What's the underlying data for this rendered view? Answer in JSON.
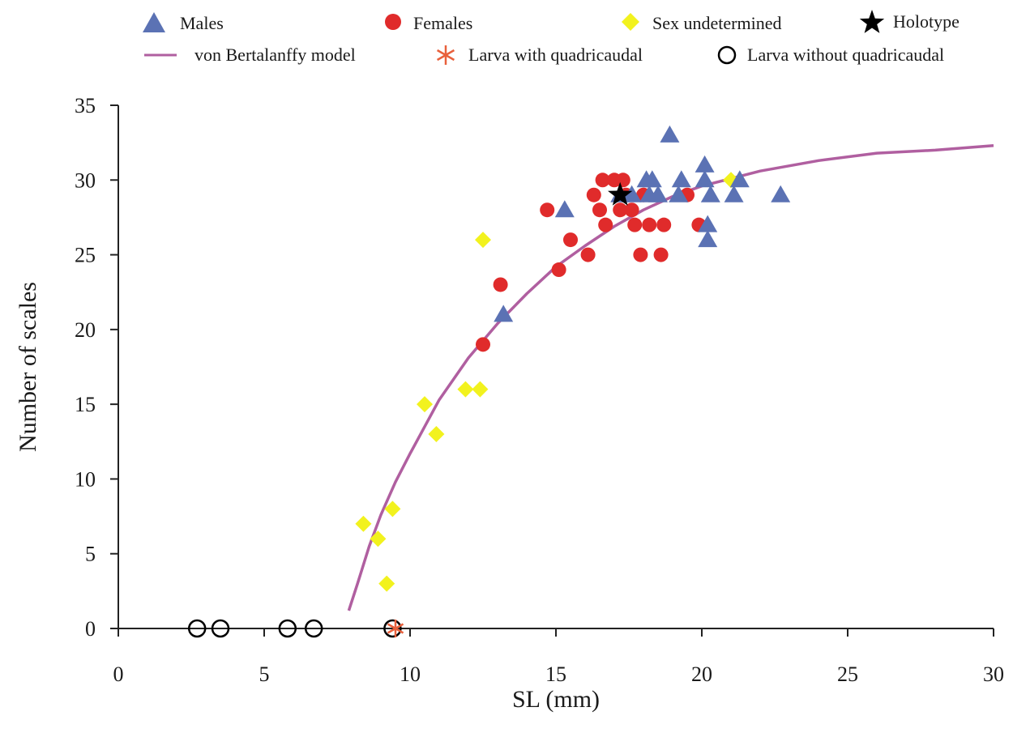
{
  "chart_data": {
    "type": "scatter",
    "xlabel": "SL (mm)",
    "ylabel": "Number of scales",
    "xlim": [
      0,
      30
    ],
    "ylim": [
      0,
      35
    ],
    "xticks": [
      0,
      5,
      10,
      15,
      20,
      25,
      30
    ],
    "yticks": [
      0,
      5,
      10,
      15,
      20,
      25,
      30,
      35
    ],
    "grid": false,
    "legend_position": "top",
    "colors": {
      "males": "#5b72b4",
      "females": "#e02b2b",
      "sex_undetermined": "#f2f21e",
      "holotype": "#000000",
      "von_bertalanffy": "#b05fa0",
      "larva_with_quadricaudal": "#e8603c",
      "larva_without_quadricaudal": "#000000"
    },
    "legend": {
      "males": "Males",
      "females": "Females",
      "sex_undetermined": "Sex undetermined",
      "holotype": "Holotype",
      "von_bertalanffy": "von Bertalanffy model",
      "larva_with_quadricaudal": "Larva with quadricaudal",
      "larva_without_quadricaudal": "Larva without quadricaudal"
    },
    "series": [
      {
        "key": "males",
        "name": "Males",
        "marker": "triangle",
        "points": [
          [
            13.2,
            21
          ],
          [
            15.3,
            28
          ],
          [
            17.2,
            29
          ],
          [
            17.6,
            29
          ],
          [
            18.1,
            30
          ],
          [
            18.3,
            30
          ],
          [
            18.2,
            29
          ],
          [
            18.5,
            29
          ],
          [
            18.9,
            33
          ],
          [
            19.2,
            29
          ],
          [
            19.3,
            30
          ],
          [
            20.1,
            31
          ],
          [
            20.1,
            30
          ],
          [
            20.2,
            27
          ],
          [
            20.3,
            29
          ],
          [
            20.2,
            26
          ],
          [
            21.1,
            29
          ],
          [
            21.3,
            30
          ],
          [
            22.7,
            29
          ]
        ]
      },
      {
        "key": "females",
        "name": "Females",
        "marker": "circle",
        "points": [
          [
            12.5,
            19
          ],
          [
            13.1,
            23
          ],
          [
            14.7,
            28
          ],
          [
            15.1,
            24
          ],
          [
            15.5,
            26
          ],
          [
            16.1,
            25
          ],
          [
            16.3,
            29
          ],
          [
            16.5,
            28
          ],
          [
            16.6,
            30
          ],
          [
            16.7,
            27
          ],
          [
            17.0,
            30
          ],
          [
            17.3,
            30
          ],
          [
            17.2,
            28
          ],
          [
            17.4,
            29
          ],
          [
            17.6,
            28
          ],
          [
            17.7,
            27
          ],
          [
            18.0,
            29
          ],
          [
            17.9,
            25
          ],
          [
            18.2,
            27
          ],
          [
            18.6,
            25
          ],
          [
            18.7,
            27
          ],
          [
            19.5,
            29
          ],
          [
            19.9,
            27
          ]
        ]
      },
      {
        "key": "sex_undetermined",
        "name": "Sex undetermined",
        "marker": "diamond",
        "points": [
          [
            8.4,
            7
          ],
          [
            8.9,
            6
          ],
          [
            9.2,
            3
          ],
          [
            9.4,
            8
          ],
          [
            10.5,
            15
          ],
          [
            10.9,
            13
          ],
          [
            11.9,
            16
          ],
          [
            12.4,
            16
          ],
          [
            12.5,
            26
          ],
          [
            21.0,
            30
          ]
        ]
      },
      {
        "key": "holotype",
        "name": "Holotype",
        "marker": "star",
        "points": [
          [
            17.2,
            29
          ]
        ]
      },
      {
        "key": "larva_with_quadricaudal",
        "name": "Larva with quadricaudal",
        "marker": "asterisk",
        "points": [
          [
            9.5,
            0
          ]
        ]
      },
      {
        "key": "larva_without_quadricaudal",
        "name": "Larva without quadricaudal",
        "marker": "open-circle",
        "points": [
          [
            2.7,
            0
          ],
          [
            3.5,
            0
          ],
          [
            5.8,
            0
          ],
          [
            6.7,
            0
          ],
          [
            9.4,
            0
          ]
        ]
      },
      {
        "key": "von_bertalanffy",
        "name": "von Bertalanffy model",
        "marker": "line",
        "points": [
          [
            7.9,
            1.2
          ],
          [
            8.2,
            3
          ],
          [
            8.6,
            5.5
          ],
          [
            9.0,
            7.6
          ],
          [
            9.5,
            9.8
          ],
          [
            10.0,
            11.7
          ],
          [
            10.5,
            13.5
          ],
          [
            11.0,
            15.3
          ],
          [
            12.0,
            18.1
          ],
          [
            13.0,
            20.4
          ],
          [
            14.0,
            22.4
          ],
          [
            15.0,
            24.2
          ],
          [
            16.0,
            25.6
          ],
          [
            17.0,
            26.9
          ],
          [
            18.0,
            28.0
          ],
          [
            19.0,
            28.9
          ],
          [
            20.0,
            29.6
          ],
          [
            22.0,
            30.6
          ],
          [
            24.0,
            31.3
          ],
          [
            26.0,
            31.8
          ],
          [
            28.0,
            32.0
          ],
          [
            30.0,
            32.3
          ]
        ]
      }
    ]
  }
}
